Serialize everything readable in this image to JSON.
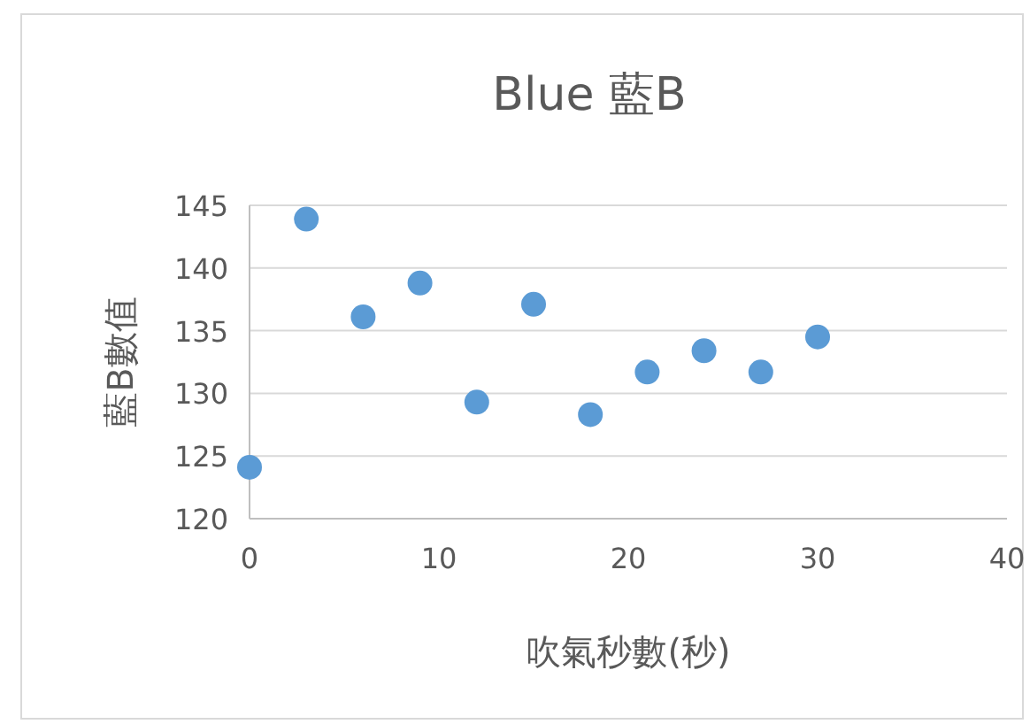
{
  "chart_data": {
    "type": "scatter",
    "title": "Blue 藍B",
    "xlabel": "吹氣秒數(秒)",
    "ylabel": "藍B數值",
    "x": [
      0,
      3,
      6,
      9,
      12,
      15,
      18,
      21,
      24,
      27,
      30
    ],
    "series": [
      {
        "color": "#5b9bd5",
        "values": [
          124.1,
          143.9,
          136.1,
          138.8,
          129.3,
          137.1,
          128.3,
          131.7,
          133.4,
          131.7,
          134.5
        ]
      }
    ],
    "xlim": [
      0,
      40
    ],
    "xticks": [
      0,
      10,
      20,
      30,
      40
    ],
    "ylim": [
      120,
      145
    ],
    "yticks": [
      120,
      125,
      130,
      135,
      140,
      145
    ],
    "grid": "y",
    "marker": "circle"
  }
}
